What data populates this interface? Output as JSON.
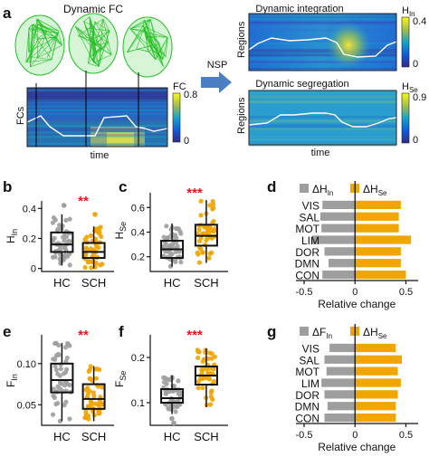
{
  "panels": {
    "a": {
      "label": "a",
      "brain_title": "Dynamic FC",
      "matrix_ylabel": "FCs",
      "matrix_xlabel": "time",
      "colorbar_label": "FC",
      "colorbar_ticks": [
        "0.8",
        "0"
      ],
      "arrow_label": "NSP",
      "integration": {
        "title": "Dynamic integration",
        "ylabel": "Regions",
        "colorbar_label": "H",
        "colorbar_sub": "In",
        "colorbar_ticks": [
          "0.4",
          "0"
        ]
      },
      "segregation": {
        "title": "Dynamic segregation",
        "ylabel": "Regions",
        "xlabel": "time",
        "colorbar_label": "H",
        "colorbar_sub": "Se",
        "colorbar_ticks": [
          "0.9",
          "0"
        ]
      }
    }
  },
  "colors": {
    "hc": "#9e9e9e",
    "sch": "#f0a500",
    "significance": "#e8141c",
    "brain": "#1fbf1f",
    "arrow": "#4a7fc1"
  },
  "chart_data": [
    {
      "id": "b",
      "type": "box",
      "label": "b",
      "ylabel": "H",
      "ylabel_sub": "In",
      "categories": [
        "HC",
        "SCH"
      ],
      "yticks": [
        "0.4",
        "0.2",
        "0"
      ],
      "ylim": [
        -0.02,
        0.45
      ],
      "significance": "**",
      "boxes": [
        {
          "name": "HC",
          "whisker_low": 0.02,
          "q1": 0.11,
          "median": 0.16,
          "q3": 0.24,
          "whisker_high": 0.36
        },
        {
          "name": "SCH",
          "whisker_low": 0.0,
          "q1": 0.07,
          "median": 0.11,
          "q3": 0.17,
          "whisker_high": 0.28
        }
      ],
      "outliers": [
        {
          "category": "HC",
          "value": 0.42
        },
        {
          "category": "SCH",
          "value": 0.36
        }
      ]
    },
    {
      "id": "c",
      "type": "box",
      "label": "c",
      "ylabel": "H",
      "ylabel_sub": "Se",
      "categories": [
        "HC",
        "SCH"
      ],
      "yticks": [
        "0.6",
        "0.4",
        "0.2"
      ],
      "ylim": [
        0.08,
        0.72
      ],
      "significance": "***",
      "boxes": [
        {
          "name": "HC",
          "whisker_low": 0.12,
          "q1": 0.19,
          "median": 0.26,
          "q3": 0.33,
          "whisker_high": 0.47
        },
        {
          "name": "SCH",
          "whisker_low": 0.15,
          "q1": 0.29,
          "median": 0.37,
          "q3": 0.46,
          "whisker_high": 0.66
        }
      ],
      "outliers": []
    },
    {
      "id": "d",
      "type": "bar",
      "label": "d",
      "orientation": "horizontal",
      "categories": [
        "VIS",
        "SAL",
        "MOT",
        "LIM",
        "DOR",
        "DMN",
        "CON"
      ],
      "series": [
        {
          "name": "ΔH",
          "name_sub": "In",
          "values": [
            -0.32,
            -0.34,
            -0.33,
            -0.42,
            -0.3,
            -0.26,
            -0.32
          ]
        },
        {
          "name": "ΔH",
          "name_sub": "Se",
          "values": [
            0.45,
            0.43,
            0.43,
            0.55,
            0.45,
            0.45,
            0.5
          ]
        }
      ],
      "xticks": [
        "-0.5",
        "0",
        "0.5"
      ],
      "xlim": [
        -0.58,
        0.62
      ],
      "xlabel": "Relative change"
    },
    {
      "id": "e",
      "type": "box",
      "label": "e",
      "ylabel": "F",
      "ylabel_sub": "In",
      "categories": [
        "HC",
        "SCH"
      ],
      "yticks": [
        "0.10",
        "0.05"
      ],
      "ylim": [
        0.025,
        0.135
      ],
      "significance": "**",
      "boxes": [
        {
          "name": "HC",
          "whisker_low": 0.03,
          "q1": 0.065,
          "median": 0.08,
          "q3": 0.1,
          "whisker_high": 0.125
        },
        {
          "name": "SCH",
          "whisker_low": 0.03,
          "q1": 0.045,
          "median": 0.057,
          "q3": 0.075,
          "whisker_high": 0.097
        }
      ],
      "outliers": []
    },
    {
      "id": "f",
      "type": "box",
      "label": "f",
      "ylabel": "F",
      "ylabel_sub": "Se",
      "categories": [
        "HC",
        "SCH"
      ],
      "yticks": [
        "0.2",
        "0.1"
      ],
      "ylim": [
        0.05,
        0.25
      ],
      "significance": "***",
      "boxes": [
        {
          "name": "HC",
          "whisker_low": 0.075,
          "q1": 0.1,
          "median": 0.11,
          "q3": 0.13,
          "whisker_high": 0.16
        },
        {
          "name": "SCH",
          "whisker_low": 0.09,
          "q1": 0.14,
          "median": 0.16,
          "q3": 0.18,
          "whisker_high": 0.22
        }
      ],
      "outliers": [
        {
          "category": "HC",
          "value": 0.065
        },
        {
          "category": "HC",
          "value": 0.055
        }
      ]
    },
    {
      "id": "g",
      "type": "bar",
      "label": "g",
      "orientation": "horizontal",
      "categories": [
        "VIS",
        "SAL",
        "MOT",
        "LIM",
        "DOR",
        "DMN",
        "CON"
      ],
      "series": [
        {
          "name": "ΔF",
          "name_sub": "In",
          "values": [
            -0.25,
            -0.3,
            -0.28,
            -0.33,
            -0.3,
            -0.27,
            -0.3
          ]
        },
        {
          "name": "ΔH",
          "name_sub": "Se",
          "values": [
            0.4,
            0.46,
            0.42,
            0.45,
            0.42,
            0.4,
            0.4
          ]
        }
      ],
      "xticks": [
        "-0.5",
        "0",
        "0.5"
      ],
      "xlim": [
        -0.58,
        0.62
      ],
      "xlabel": "Relative change"
    }
  ]
}
